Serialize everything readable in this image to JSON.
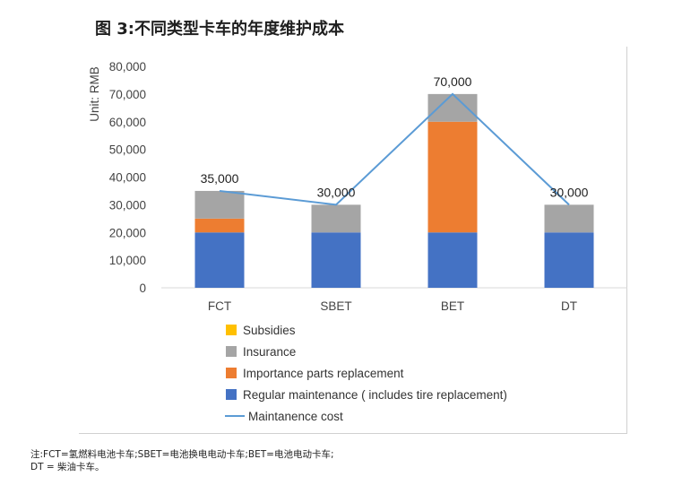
{
  "figure_title": "图 3:不同类型卡车的年度维护成本",
  "footnote": {
    "line1": "注:FCT=氢燃料电池卡车;SBET=电池换电电动卡车;BET=电池电动卡车;",
    "line2": "DT = 柴油卡车。"
  },
  "chart_data": {
    "type": "bar",
    "stacked": true,
    "ylabel": "Unit: RMB",
    "ylim": [
      0,
      80000
    ],
    "yticks": [
      "0",
      "10,000",
      "20,000",
      "30,000",
      "40,000",
      "50,000",
      "60,000",
      "70,000",
      "80,000"
    ],
    "categories": [
      "FCT",
      "SBET",
      "BET",
      "DT"
    ],
    "series": [
      {
        "name": "Regular maintenance ( includes tire replacement)",
        "color": "#4472C4",
        "values": [
          20000,
          20000,
          20000,
          20000
        ]
      },
      {
        "name": "Importance parts replacement",
        "color": "#ED7D31",
        "values": [
          5000,
          0,
          40000,
          0
        ]
      },
      {
        "name": "Insurance",
        "color": "#A5A5A5",
        "values": [
          10000,
          10000,
          10000,
          10000
        ]
      },
      {
        "name": "Subsidies",
        "color": "#FFC000",
        "values": [
          0,
          0,
          0,
          0
        ]
      }
    ],
    "line": {
      "name": "Maintanence cost",
      "color": "#5B9BD5",
      "values": [
        35000,
        30000,
        70000,
        30000
      ]
    },
    "data_labels": [
      "35,000",
      "30,000",
      "70,000",
      "30,000"
    ],
    "legend_position": "bottom",
    "legend_order": [
      {
        "name": "Subsidies",
        "color": "#FFC000",
        "kind": "box"
      },
      {
        "name": "Insurance",
        "color": "#A5A5A5",
        "kind": "box"
      },
      {
        "name": "Importance parts replacement",
        "color": "#ED7D31",
        "kind": "box"
      },
      {
        "name": "Regular maintenance ( includes tire replacement)",
        "color": "#4472C4",
        "kind": "box"
      },
      {
        "name": "Maintanence cost",
        "color": "#5B9BD5",
        "kind": "line"
      }
    ],
    "grid": false
  }
}
